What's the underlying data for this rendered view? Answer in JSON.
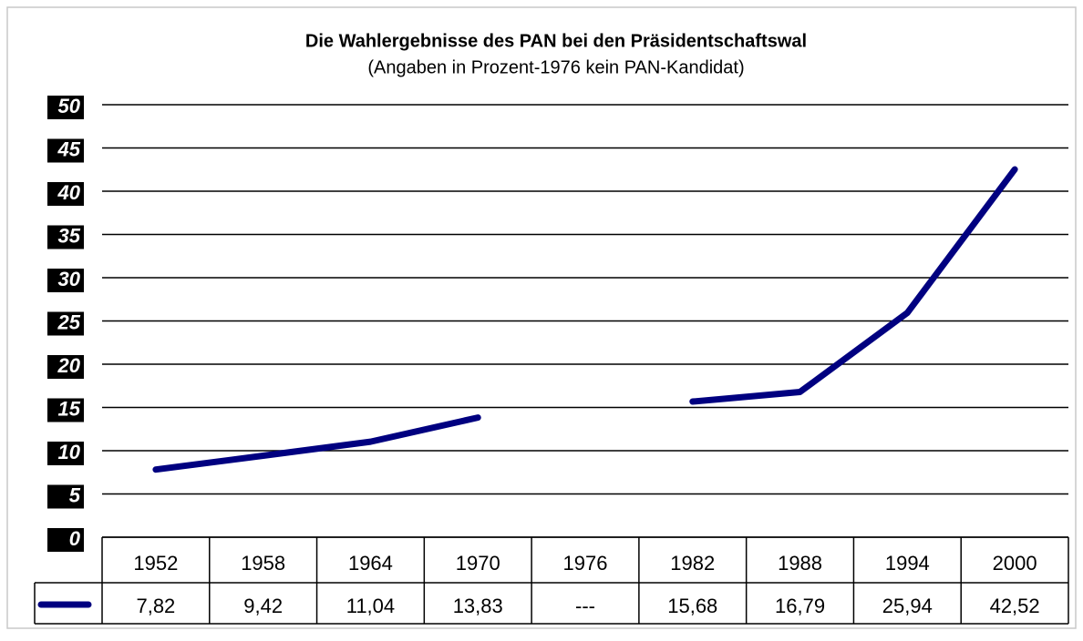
{
  "chart_data": {
    "type": "line",
    "title": "Die Wahlergebnisse des PAN bei den Präsidentschaftswal",
    "subtitle": "(Angaben in Prozent-1976 kein PAN-Kandidat)",
    "categories": [
      "1952",
      "1958",
      "1964",
      "1970",
      "1976",
      "1982",
      "1988",
      "1994",
      "2000"
    ],
    "values": [
      7.82,
      9.42,
      11.04,
      13.83,
      null,
      15.68,
      16.79,
      25.94,
      42.52
    ],
    "value_labels": [
      "7,82",
      "9,42",
      "11,04",
      "13,83",
      "---",
      "15,68",
      "16,79",
      "25,94",
      "42,52"
    ],
    "color": "#000080",
    "ylim": [
      0,
      50
    ],
    "yticks": [
      0,
      5,
      10,
      15,
      20,
      25,
      30,
      35,
      40,
      45,
      50
    ],
    "grid": true
  }
}
